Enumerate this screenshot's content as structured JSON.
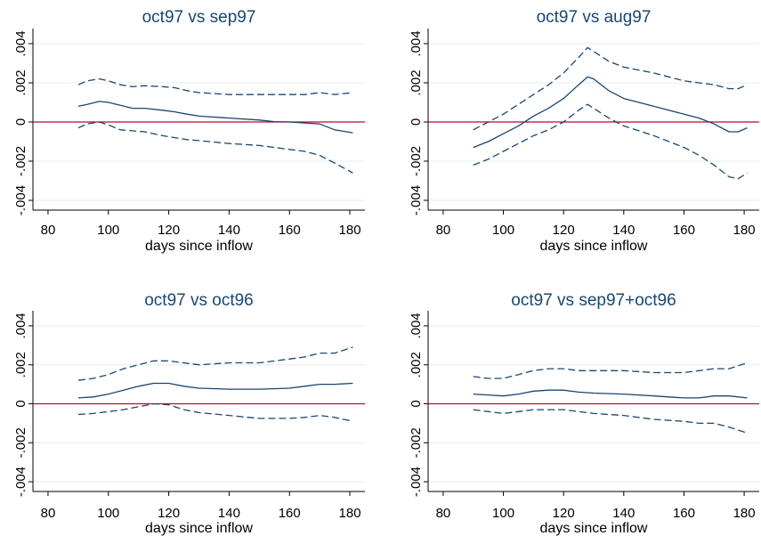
{
  "chart_data": [
    {
      "type": "line",
      "title": "oct97 vs sep97",
      "xlabel": "days since inflow",
      "ylabel": "",
      "xlim": [
        75,
        185
      ],
      "ylim": [
        -0.0045,
        0.0045
      ],
      "xticks": [
        "80",
        "100",
        "120",
        "140",
        "160",
        "180"
      ],
      "yticks": [
        "-.004",
        "-.002",
        "0",
        ".002",
        ".004"
      ],
      "zero_line": true,
      "grid": true,
      "legend": "none",
      "colors": {
        "estimate": "#1a476f",
        "bounds": "#1a476f",
        "zero": "#c10534",
        "grid": "#e6ecef"
      },
      "series": [
        {
          "style": "solid",
          "x": [
            90,
            93,
            97,
            100,
            104,
            108,
            112,
            118,
            122,
            126,
            130,
            140,
            150,
            155,
            160,
            165,
            170,
            175,
            181
          ],
          "y": [
            0.0008,
            0.0009,
            0.00105,
            0.001,
            0.00085,
            0.0007,
            0.0007,
            0.0006,
            0.00052,
            0.0004,
            0.0003,
            0.0002,
            0.0001,
            2e-05,
            0.0,
            -5e-05,
            -0.0001,
            -0.0004,
            -0.00055
          ]
        },
        {
          "style": "dashed",
          "x": [
            90,
            93,
            97,
            100,
            104,
            108,
            112,
            118,
            122,
            126,
            130,
            140,
            150,
            155,
            160,
            165,
            170,
            175,
            181
          ],
          "y": [
            0.0019,
            0.0021,
            0.0022,
            0.0021,
            0.0019,
            0.0018,
            0.00185,
            0.0018,
            0.00175,
            0.0016,
            0.0015,
            0.0014,
            0.0014,
            0.0014,
            0.0014,
            0.0014,
            0.0015,
            0.0014,
            0.0015
          ]
        },
        {
          "style": "dashed",
          "x": [
            90,
            93,
            97,
            100,
            104,
            108,
            112,
            118,
            122,
            126,
            130,
            140,
            150,
            155,
            160,
            165,
            170,
            175,
            181
          ],
          "y": [
            -0.0003,
            -0.0001,
            0.0,
            -0.00015,
            -0.0004,
            -0.00045,
            -0.0005,
            -0.0007,
            -0.0008,
            -0.0009,
            -0.00095,
            -0.0011,
            -0.0012,
            -0.0013,
            -0.0014,
            -0.0015,
            -0.0017,
            -0.0021,
            -0.0026
          ]
        }
      ]
    },
    {
      "type": "line",
      "title": "oct97 vs aug97",
      "xlabel": "days since inflow",
      "ylabel": "",
      "xlim": [
        75,
        185
      ],
      "ylim": [
        -0.0045,
        0.0045
      ],
      "xticks": [
        "80",
        "100",
        "120",
        "140",
        "160",
        "180"
      ],
      "yticks": [
        "-.004",
        "-.002",
        "0",
        ".002",
        ".004"
      ],
      "zero_line": true,
      "grid": true,
      "legend": "none",
      "colors": {
        "estimate": "#1a476f",
        "bounds": "#1a476f",
        "zero": "#c10534",
        "grid": "#e6ecef"
      },
      "series": [
        {
          "style": "solid",
          "x": [
            90,
            95,
            100,
            105,
            110,
            115,
            120,
            125,
            128,
            130,
            135,
            140,
            150,
            160,
            165,
            170,
            175,
            178,
            181
          ],
          "y": [
            -0.0013,
            -0.001,
            -0.0006,
            -0.0002,
            0.0003,
            0.0007,
            0.0012,
            0.0019,
            0.0023,
            0.0022,
            0.0016,
            0.0012,
            0.0008,
            0.0004,
            0.0002,
            -0.0001,
            -0.0005,
            -0.0005,
            -0.0003
          ]
        },
        {
          "style": "dashed",
          "x": [
            90,
            95,
            100,
            105,
            110,
            115,
            120,
            125,
            128,
            130,
            135,
            140,
            150,
            160,
            165,
            170,
            175,
            178,
            181
          ],
          "y": [
            -0.0004,
            0.0,
            0.0004,
            0.0009,
            0.0014,
            0.0019,
            0.0025,
            0.0033,
            0.0038,
            0.0036,
            0.0031,
            0.0028,
            0.0025,
            0.0021,
            0.002,
            0.0019,
            0.0017,
            0.0017,
            0.0019
          ]
        },
        {
          "style": "dashed",
          "x": [
            90,
            95,
            100,
            105,
            110,
            115,
            120,
            125,
            128,
            130,
            135,
            140,
            150,
            160,
            165,
            170,
            175,
            178,
            181
          ],
          "y": [
            -0.0022,
            -0.0019,
            -0.0015,
            -0.0011,
            -0.0007,
            -0.0004,
            0.0,
            0.0006,
            0.0009,
            0.0007,
            0.0002,
            -0.0002,
            -0.0007,
            -0.0013,
            -0.0017,
            -0.0022,
            -0.0028,
            -0.0029,
            -0.0026
          ]
        }
      ]
    },
    {
      "type": "line",
      "title": "oct97 vs oct96",
      "xlabel": "days since inflow",
      "ylabel": "",
      "xlim": [
        75,
        185
      ],
      "ylim": [
        -0.0045,
        0.0045
      ],
      "xticks": [
        "80",
        "100",
        "120",
        "140",
        "160",
        "180"
      ],
      "yticks": [
        "-.004",
        "-.002",
        "0",
        ".002",
        ".004"
      ],
      "zero_line": true,
      "grid": true,
      "legend": "none",
      "colors": {
        "estimate": "#1a476f",
        "bounds": "#1a476f",
        "zero": "#c10534",
        "grid": "#e6ecef"
      },
      "series": [
        {
          "style": "solid",
          "x": [
            90,
            95,
            100,
            105,
            110,
            115,
            120,
            125,
            130,
            140,
            150,
            160,
            165,
            170,
            175,
            181
          ],
          "y": [
            0.0003,
            0.00035,
            0.0005,
            0.0007,
            0.0009,
            0.00105,
            0.00105,
            0.0009,
            0.0008,
            0.00075,
            0.00075,
            0.0008,
            0.0009,
            0.001,
            0.001,
            0.00105
          ]
        },
        {
          "style": "dashed",
          "x": [
            90,
            95,
            100,
            105,
            110,
            115,
            120,
            125,
            130,
            140,
            150,
            160,
            165,
            170,
            175,
            181
          ],
          "y": [
            0.0012,
            0.0013,
            0.0015,
            0.0018,
            0.002,
            0.0022,
            0.0022,
            0.0021,
            0.002,
            0.0021,
            0.0021,
            0.0023,
            0.0024,
            0.0026,
            0.0026,
            0.0029
          ]
        },
        {
          "style": "dashed",
          "x": [
            90,
            95,
            100,
            105,
            110,
            115,
            120,
            125,
            130,
            140,
            150,
            160,
            165,
            170,
            175,
            181
          ],
          "y": [
            -0.00055,
            -0.0005,
            -0.0004,
            -0.0003,
            -0.00015,
            0.0,
            -5e-05,
            -0.0003,
            -0.00045,
            -0.0006,
            -0.00075,
            -0.00075,
            -0.0007,
            -0.0006,
            -0.0007,
            -0.0009
          ]
        }
      ]
    },
    {
      "type": "line",
      "title": "oct97 vs sep97+oct96",
      "xlabel": "days since inflow",
      "ylabel": "",
      "xlim": [
        75,
        185
      ],
      "ylim": [
        -0.0045,
        0.0045
      ],
      "xticks": [
        "80",
        "100",
        "120",
        "140",
        "160",
        "180"
      ],
      "yticks": [
        "-.004",
        "-.002",
        "0",
        ".002",
        ".004"
      ],
      "zero_line": true,
      "grid": true,
      "legend": "none",
      "colors": {
        "estimate": "#1a476f",
        "bounds": "#1a476f",
        "zero": "#c10534",
        "grid": "#e6ecef"
      },
      "series": [
        {
          "style": "solid",
          "x": [
            90,
            95,
            100,
            105,
            110,
            115,
            120,
            125,
            130,
            140,
            150,
            160,
            165,
            170,
            175,
            181
          ],
          "y": [
            0.0005,
            0.00045,
            0.0004,
            0.0005,
            0.00065,
            0.0007,
            0.0007,
            0.0006,
            0.00055,
            0.0005,
            0.0004,
            0.0003,
            0.0003,
            0.0004,
            0.0004,
            0.0003
          ]
        },
        {
          "style": "dashed",
          "x": [
            90,
            95,
            100,
            105,
            110,
            115,
            120,
            125,
            130,
            140,
            150,
            160,
            165,
            170,
            175,
            181
          ],
          "y": [
            0.0014,
            0.0013,
            0.0013,
            0.0015,
            0.0017,
            0.0018,
            0.0018,
            0.0017,
            0.0017,
            0.0017,
            0.0016,
            0.0016,
            0.0017,
            0.0018,
            0.0018,
            0.0021
          ]
        },
        {
          "style": "dashed",
          "x": [
            90,
            95,
            100,
            105,
            110,
            115,
            120,
            125,
            130,
            140,
            150,
            160,
            165,
            170,
            175,
            181
          ],
          "y": [
            -0.0003,
            -0.0004,
            -0.0005,
            -0.0004,
            -0.0003,
            -0.0003,
            -0.0003,
            -0.0004,
            -0.0005,
            -0.0006,
            -0.0008,
            -0.0009,
            -0.001,
            -0.001,
            -0.0012,
            -0.0015
          ]
        }
      ]
    }
  ]
}
